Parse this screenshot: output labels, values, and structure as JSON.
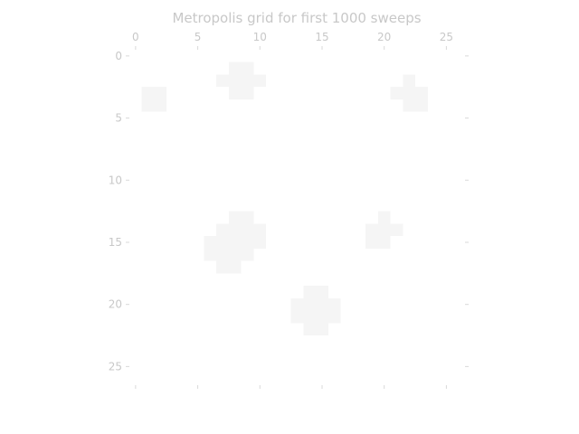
{
  "chart_data": {
    "type": "heatmap",
    "title": "Metropolis grid for first 1000 sweeps",
    "x_ticks": [
      0,
      5,
      10,
      15,
      20,
      25
    ],
    "y_ticks": [
      0,
      5,
      10,
      15,
      20,
      25
    ],
    "x_tick_position": "top",
    "y_axis_inverted": true,
    "grid_shape": [
      27,
      27
    ],
    "colors": {
      "cell_high": "#ffffff",
      "cell_low": "#f5f5f5",
      "text": "#c8c8c8",
      "tick": "#d9d9d9"
    },
    "values": [
      [
        1,
        1,
        1,
        1,
        1,
        1,
        1,
        1,
        1,
        1,
        1,
        1,
        1,
        1,
        1,
        1,
        1,
        1,
        1,
        1,
        1,
        1,
        1,
        1,
        1,
        1,
        1
      ],
      [
        1,
        1,
        1,
        1,
        1,
        1,
        1,
        1,
        0,
        0,
        1,
        1,
        1,
        1,
        1,
        1,
        1,
        1,
        1,
        1,
        1,
        1,
        1,
        1,
        1,
        1,
        1
      ],
      [
        1,
        1,
        1,
        1,
        1,
        1,
        1,
        0,
        0,
        0,
        0,
        1,
        1,
        1,
        1,
        1,
        1,
        1,
        1,
        1,
        1,
        1,
        0,
        1,
        1,
        1,
        1
      ],
      [
        1,
        0,
        0,
        1,
        1,
        1,
        1,
        1,
        0,
        0,
        1,
        1,
        1,
        1,
        1,
        1,
        1,
        1,
        1,
        1,
        1,
        0,
        0,
        0,
        1,
        1,
        1
      ],
      [
        1,
        0,
        0,
        1,
        1,
        1,
        1,
        1,
        1,
        1,
        1,
        1,
        1,
        1,
        1,
        1,
        1,
        1,
        1,
        1,
        1,
        1,
        0,
        0,
        1,
        1,
        1
      ],
      [
        1,
        1,
        1,
        1,
        1,
        1,
        1,
        1,
        1,
        1,
        1,
        1,
        1,
        1,
        1,
        1,
        1,
        1,
        1,
        1,
        1,
        1,
        1,
        1,
        1,
        1,
        1
      ],
      [
        1,
        1,
        1,
        1,
        1,
        1,
        1,
        1,
        1,
        1,
        1,
        1,
        1,
        1,
        1,
        1,
        1,
        1,
        1,
        1,
        1,
        1,
        1,
        1,
        1,
        1,
        1
      ],
      [
        1,
        1,
        1,
        1,
        1,
        1,
        1,
        1,
        1,
        1,
        1,
        1,
        1,
        1,
        1,
        1,
        1,
        1,
        1,
        1,
        1,
        1,
        1,
        1,
        1,
        1,
        1
      ],
      [
        1,
        1,
        1,
        1,
        1,
        1,
        1,
        1,
        1,
        1,
        1,
        1,
        1,
        1,
        1,
        1,
        1,
        1,
        1,
        1,
        1,
        1,
        1,
        1,
        1,
        1,
        1
      ],
      [
        1,
        1,
        1,
        1,
        1,
        1,
        1,
        1,
        1,
        1,
        1,
        1,
        1,
        1,
        1,
        1,
        1,
        1,
        1,
        1,
        1,
        1,
        1,
        1,
        1,
        1,
        1
      ],
      [
        1,
        1,
        1,
        1,
        1,
        1,
        1,
        1,
        1,
        1,
        1,
        1,
        1,
        1,
        1,
        1,
        1,
        1,
        1,
        1,
        1,
        1,
        1,
        1,
        1,
        1,
        1
      ],
      [
        1,
        1,
        1,
        1,
        1,
        1,
        1,
        1,
        1,
        1,
        1,
        1,
        1,
        1,
        1,
        1,
        1,
        1,
        1,
        1,
        1,
        1,
        1,
        1,
        1,
        1,
        1
      ],
      [
        1,
        1,
        1,
        1,
        1,
        1,
        1,
        1,
        1,
        1,
        1,
        1,
        1,
        1,
        1,
        1,
        1,
        1,
        1,
        1,
        1,
        1,
        1,
        1,
        1,
        1,
        1
      ],
      [
        1,
        1,
        1,
        1,
        1,
        1,
        1,
        1,
        0,
        0,
        1,
        1,
        1,
        1,
        1,
        1,
        1,
        1,
        1,
        1,
        0,
        1,
        1,
        1,
        1,
        1,
        1
      ],
      [
        1,
        1,
        1,
        1,
        1,
        1,
        1,
        0,
        0,
        0,
        0,
        1,
        1,
        1,
        1,
        1,
        1,
        1,
        1,
        0,
        0,
        0,
        1,
        1,
        1,
        1,
        1
      ],
      [
        1,
        1,
        1,
        1,
        1,
        1,
        0,
        0,
        0,
        0,
        0,
        1,
        1,
        1,
        1,
        1,
        1,
        1,
        1,
        0,
        0,
        1,
        1,
        1,
        1,
        1,
        1
      ],
      [
        1,
        1,
        1,
        1,
        1,
        1,
        0,
        0,
        0,
        0,
        1,
        1,
        1,
        1,
        1,
        1,
        1,
        1,
        1,
        1,
        1,
        1,
        1,
        1,
        1,
        1,
        1
      ],
      [
        1,
        1,
        1,
        1,
        1,
        1,
        1,
        0,
        0,
        1,
        1,
        1,
        1,
        1,
        1,
        1,
        1,
        1,
        1,
        1,
        1,
        1,
        1,
        1,
        1,
        1,
        1
      ],
      [
        1,
        1,
        1,
        1,
        1,
        1,
        1,
        1,
        1,
        1,
        1,
        1,
        1,
        1,
        1,
        1,
        1,
        1,
        1,
        1,
        1,
        1,
        1,
        1,
        1,
        1,
        1
      ],
      [
        1,
        1,
        1,
        1,
        1,
        1,
        1,
        1,
        1,
        1,
        1,
        1,
        1,
        1,
        0,
        0,
        1,
        1,
        1,
        1,
        1,
        1,
        1,
        1,
        1,
        1,
        1
      ],
      [
        1,
        1,
        1,
        1,
        1,
        1,
        1,
        1,
        1,
        1,
        1,
        1,
        1,
        0,
        0,
        0,
        0,
        1,
        1,
        1,
        1,
        1,
        1,
        1,
        1,
        1,
        1
      ],
      [
        1,
        1,
        1,
        1,
        1,
        1,
        1,
        1,
        1,
        1,
        1,
        1,
        1,
        0,
        0,
        0,
        0,
        1,
        1,
        1,
        1,
        1,
        1,
        1,
        1,
        1,
        1
      ],
      [
        1,
        1,
        1,
        1,
        1,
        1,
        1,
        1,
        1,
        1,
        1,
        1,
        1,
        1,
        0,
        0,
        1,
        1,
        1,
        1,
        1,
        1,
        1,
        1,
        1,
        1,
        1
      ],
      [
        1,
        1,
        1,
        1,
        1,
        1,
        1,
        1,
        1,
        1,
        1,
        1,
        1,
        1,
        1,
        1,
        1,
        1,
        1,
        1,
        1,
        1,
        1,
        1,
        1,
        1,
        1
      ],
      [
        1,
        1,
        1,
        1,
        1,
        1,
        1,
        1,
        1,
        1,
        1,
        1,
        1,
        1,
        1,
        1,
        1,
        1,
        1,
        1,
        1,
        1,
        1,
        1,
        1,
        1,
        1
      ],
      [
        1,
        1,
        1,
        1,
        1,
        1,
        1,
        1,
        1,
        1,
        1,
        1,
        1,
        1,
        1,
        1,
        1,
        1,
        1,
        1,
        1,
        1,
        1,
        1,
        1,
        1,
        1
      ],
      [
        1,
        1,
        1,
        1,
        1,
        1,
        1,
        1,
        1,
        1,
        1,
        1,
        1,
        1,
        1,
        1,
        1,
        1,
        1,
        1,
        1,
        1,
        1,
        1,
        1,
        1,
        1
      ]
    ]
  }
}
